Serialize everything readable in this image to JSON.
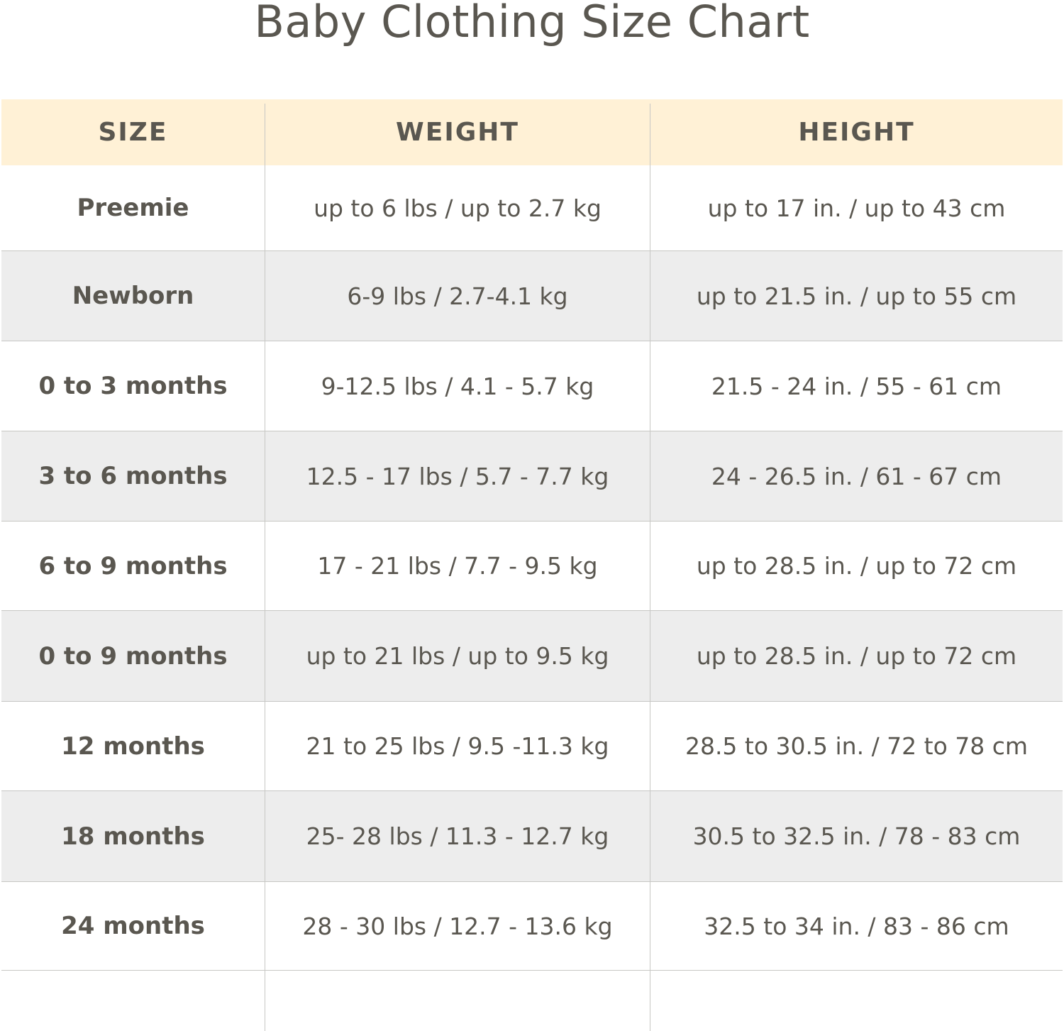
{
  "title": "Baby Clothing Size Chart",
  "headers": {
    "size": "SIZE",
    "weight": "WEIGHT",
    "height": "HEIGHT"
  },
  "rows": [
    {
      "size": "Preemie",
      "weight": "up to 6 lbs / up to 2.7 kg",
      "height": "up to 17 in. / up to 43 cm"
    },
    {
      "size": "Newborn",
      "weight": "6-9 lbs / 2.7-4.1 kg",
      "height": "up to 21.5 in. / up to 55 cm"
    },
    {
      "size": "0 to 3 months",
      "weight": "9-12.5 lbs / 4.1 - 5.7 kg",
      "height": "21.5 - 24 in. / 55 - 61 cm"
    },
    {
      "size": "3 to 6 months",
      "weight": "12.5 - 17 lbs / 5.7 - 7.7 kg",
      "height": "24 - 26.5 in. / 61 - 67 cm"
    },
    {
      "size": "6 to 9 months",
      "weight": "17 - 21 lbs / 7.7 - 9.5 kg",
      "height": "up to 28.5 in. / up to 72 cm"
    },
    {
      "size": "0 to 9 months",
      "weight": "up to 21 lbs / up to 9.5 kg",
      "height": "up to 28.5 in. / up to 72 cm"
    },
    {
      "size": "12 months",
      "weight": "21 to 25 lbs / 9.5 -11.3 kg",
      "height": "28.5 to 30.5 in. / 72 to 78 cm"
    },
    {
      "size": "18 months",
      "weight": "25- 28 lbs / 11.3 - 12.7 kg",
      "height": "30.5 to 32.5 in. / 78 - 83 cm"
    },
    {
      "size": "24 months",
      "weight": "28 - 30 lbs / 12.7 - 13.6 kg",
      "height": "32.5 to 34 in. / 83 - 86 cm"
    }
  ],
  "colors": {
    "header_background": "#fff1d6",
    "shaded_row": "#ededed",
    "text": "#5a5750",
    "grid_line": "#c7c7c4"
  }
}
